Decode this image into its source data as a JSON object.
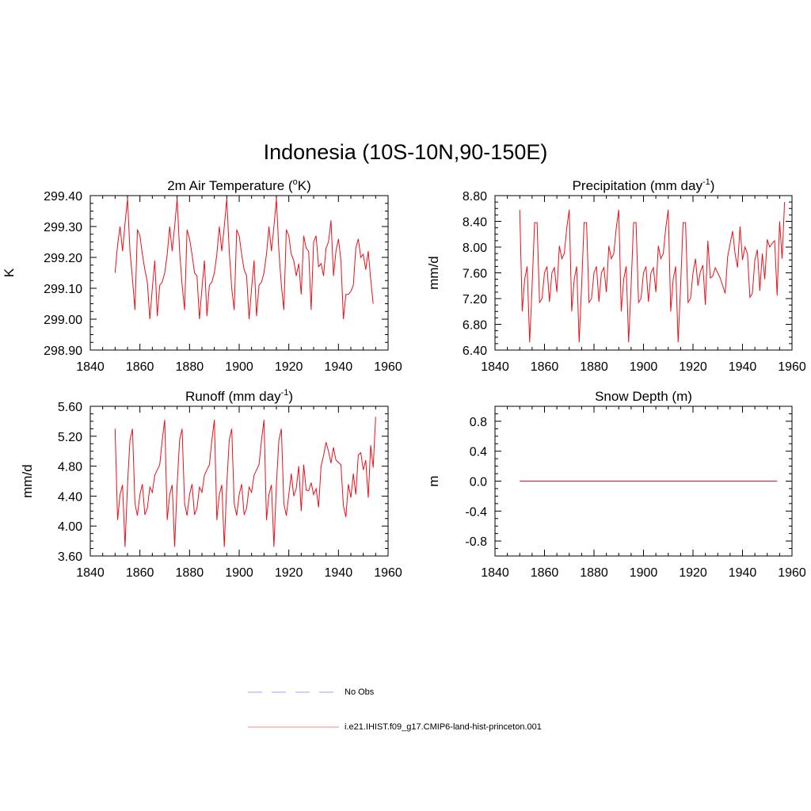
{
  "title": "Indonesia (10S-10N,90-150E)",
  "legend": {
    "items": [
      {
        "label": "No Obs",
        "color": "#9ea0f0",
        "style": "dashed"
      },
      {
        "label": "i.e21.IHIST.f09_g17.CMIP6-land-hist-princeton.001",
        "color": "#f08890",
        "style": "solid"
      }
    ]
  },
  "chart_data": [
    {
      "type": "line",
      "title_main": "2m Air Temperature (",
      "title_sup": "o",
      "title_tail": "K)",
      "ylabel": "K",
      "xlim": [
        1840,
        1960
      ],
      "ylim": [
        298.9,
        299.4
      ],
      "xticks": [
        1840,
        1860,
        1880,
        1900,
        1920,
        1940,
        1960
      ],
      "yticks": [
        298.9,
        299.0,
        299.1,
        299.2,
        299.3,
        299.4
      ],
      "ytick_labels": [
        "298.90",
        "299.00",
        "299.10",
        "299.20",
        "299.30",
        "299.40"
      ],
      "series": [
        {
          "color": "#e8101a",
          "x_start": 1850,
          "x_step": 1,
          "values": [
            299.15,
            299.24,
            299.3,
            299.22,
            299.31,
            299.39,
            299.22,
            299.13,
            299.03,
            299.29,
            299.27,
            299.21,
            299.16,
            299.12,
            299.0,
            299.1,
            299.19,
            299.01,
            299.11,
            299.12,
            299.15,
            299.21,
            299.3,
            299.22,
            299.3,
            299.39,
            299.22,
            299.11,
            299.03,
            299.29,
            299.26,
            299.21,
            299.15,
            299.14,
            299.0,
            299.1,
            299.19,
            299.01,
            299.11,
            299.12,
            299.15,
            299.21,
            299.3,
            299.22,
            299.3,
            299.39,
            299.22,
            299.1,
            299.03,
            299.29,
            299.27,
            299.21,
            299.16,
            299.14,
            299.0,
            299.1,
            299.19,
            299.01,
            299.11,
            299.12,
            299.15,
            299.21,
            299.3,
            299.22,
            299.3,
            299.39,
            299.22,
            299.11,
            299.03,
            299.29,
            299.27,
            299.21,
            299.19,
            299.14,
            299.18,
            299.08,
            299.27,
            299.23,
            299.22,
            299.03,
            299.25,
            299.27,
            299.17,
            299.18,
            299.14,
            299.23,
            299.25,
            299.32,
            299.14,
            299.22,
            299.26,
            299.19,
            299.0,
            299.08,
            299.08,
            299.09,
            299.11,
            299.23,
            299.26,
            299.2,
            299.21,
            299.16,
            299.22,
            299.13,
            299.05
          ]
        }
      ]
    },
    {
      "type": "line",
      "title_main": "Precipitation (mm day",
      "title_sup": "-1",
      "title_tail": ")",
      "ylabel": "mm/d",
      "xlim": [
        1840,
        1960
      ],
      "ylim": [
        6.4,
        8.8
      ],
      "xticks": [
        1840,
        1860,
        1880,
        1900,
        1920,
        1940,
        1960
      ],
      "yticks": [
        6.4,
        6.8,
        7.2,
        7.6,
        8.0,
        8.4,
        8.8
      ],
      "ytick_labels": [
        "6.40",
        "6.80",
        "7.20",
        "7.60",
        "8.00",
        "8.40",
        "8.80"
      ],
      "series": [
        {
          "color": "#e8101a",
          "x_start": 1850,
          "x_step": 1,
          "values": [
            8.58,
            7.0,
            7.5,
            7.7,
            6.52,
            7.4,
            8.38,
            8.38,
            7.14,
            7.2,
            7.6,
            7.7,
            7.15,
            7.6,
            7.68,
            7.3,
            8.02,
            7.82,
            7.9,
            8.3,
            8.58,
            7.0,
            7.5,
            7.7,
            6.52,
            7.4,
            8.38,
            8.38,
            7.14,
            7.2,
            7.6,
            7.7,
            7.15,
            7.6,
            7.68,
            7.3,
            8.02,
            7.82,
            7.9,
            8.3,
            8.58,
            7.0,
            7.5,
            7.7,
            6.52,
            7.4,
            8.38,
            8.38,
            7.14,
            7.2,
            7.6,
            7.7,
            7.15,
            7.6,
            7.68,
            7.3,
            8.02,
            7.82,
            7.9,
            8.3,
            8.58,
            7.0,
            7.5,
            7.7,
            6.52,
            7.4,
            8.38,
            8.38,
            7.14,
            7.2,
            7.6,
            7.82,
            7.4,
            7.62,
            7.72,
            7.1,
            8.1,
            7.52,
            7.55,
            7.68,
            7.6,
            7.52,
            7.4,
            7.28,
            7.85,
            8.05,
            8.25,
            7.9,
            7.68,
            8.32,
            7.8,
            8.0,
            7.9,
            7.22,
            7.28,
            7.8,
            7.96,
            7.32,
            7.9,
            7.5,
            8.12,
            8.0,
            8.06,
            8.1,
            7.25,
            8.4,
            7.82,
            8.7
          ]
        }
      ]
    },
    {
      "type": "line",
      "title_main": "Runoff (mm day",
      "title_sup": "-1",
      "title_tail": ")",
      "ylabel": "mm/d",
      "xlim": [
        1840,
        1960
      ],
      "ylim": [
        3.6,
        5.6
      ],
      "xticks": [
        1840,
        1860,
        1880,
        1900,
        1920,
        1940,
        1960
      ],
      "yticks": [
        3.6,
        4.0,
        4.4,
        4.8,
        5.2,
        5.6
      ],
      "ytick_labels": [
        "3.60",
        "4.00",
        "4.40",
        "4.80",
        "5.20",
        "5.60"
      ],
      "series": [
        {
          "color": "#e8101a",
          "x_start": 1850,
          "x_step": 1,
          "values": [
            5.3,
            4.08,
            4.42,
            4.55,
            3.72,
            4.55,
            5.15,
            5.3,
            4.3,
            4.14,
            4.42,
            4.56,
            4.15,
            4.24,
            4.52,
            4.45,
            4.68,
            4.75,
            4.82,
            5.15,
            5.42,
            4.08,
            4.42,
            4.55,
            3.72,
            4.55,
            5.15,
            5.3,
            4.3,
            4.14,
            4.42,
            4.56,
            4.15,
            4.24,
            4.52,
            4.45,
            4.68,
            4.75,
            4.82,
            5.15,
            5.42,
            4.08,
            4.42,
            4.55,
            3.72,
            4.55,
            5.15,
            5.3,
            4.3,
            4.14,
            4.42,
            4.56,
            4.15,
            4.24,
            4.52,
            4.45,
            4.68,
            4.75,
            4.82,
            5.15,
            5.42,
            4.08,
            4.42,
            4.55,
            3.72,
            4.55,
            5.15,
            5.3,
            4.3,
            4.14,
            4.42,
            4.7,
            4.4,
            4.5,
            4.8,
            4.2,
            4.82,
            4.48,
            4.47,
            4.58,
            4.42,
            4.5,
            4.25,
            4.8,
            4.94,
            5.12,
            5.0,
            4.84,
            5.05,
            4.88,
            4.85,
            4.82,
            4.27,
            4.12,
            4.56,
            4.38,
            4.7,
            4.42,
            4.95,
            4.98,
            4.75,
            4.88,
            4.38,
            5.08,
            4.78,
            5.46
          ]
        }
      ]
    },
    {
      "type": "line",
      "title_main": "Snow Depth (m)",
      "title_sup": "",
      "title_tail": "",
      "ylabel": "m",
      "xlim": [
        1840,
        1960
      ],
      "ylim": [
        -1.0,
        1.0
      ],
      "xticks": [
        1840,
        1860,
        1880,
        1900,
        1920,
        1940,
        1960
      ],
      "yticks": [
        -0.8,
        -0.4,
        0.0,
        0.4,
        0.8
      ],
      "ytick_labels": [
        "-0.8",
        "-0.4",
        "0.0",
        "0.4",
        "0.8"
      ],
      "series": [
        {
          "color": "#e8101a",
          "x_start": 1850,
          "x_step": 104,
          "values": [
            0.0,
            0.0
          ]
        }
      ]
    }
  ]
}
